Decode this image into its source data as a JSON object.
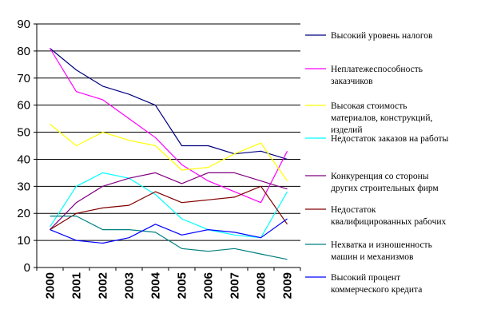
{
  "chart_data": {
    "type": "line",
    "x": [
      "2000",
      "2001",
      "2002",
      "2003",
      "2004",
      "2005",
      "2006",
      "2007",
      "2008",
      "2009"
    ],
    "ylim": [
      0,
      90
    ],
    "yticks": [
      "0",
      "10",
      "20",
      "30",
      "40",
      "50",
      "60",
      "70",
      "80",
      "90"
    ],
    "grid": "horizontal",
    "legend_position": "right",
    "series": [
      {
        "name_lines": [
          "Высокий уровень налогов"
        ],
        "color": "#000080",
        "values": [
          81,
          73,
          67,
          64,
          60,
          45,
          45,
          42,
          43,
          40
        ]
      },
      {
        "name_lines": [
          "Неплатежеспособность",
          "заказчиков"
        ],
        "color": "#ff00ff",
        "values": [
          81,
          65,
          62,
          55,
          48,
          38,
          32,
          28,
          24,
          43
        ]
      },
      {
        "name_lines": [
          "Высокая стоимость",
          "материалов, конструкций,",
          "изделий"
        ],
        "color": "#ffff00",
        "values": [
          53,
          45,
          50,
          47,
          45,
          36,
          37,
          42,
          46,
          32
        ]
      },
      {
        "name_lines": [
          "Недостаток заказов на работы"
        ],
        "color": "#00ffff",
        "values": [
          15,
          30,
          35,
          33,
          27,
          18,
          14,
          12,
          11,
          28
        ]
      },
      {
        "name_lines": [
          "Конкуренция со стороны",
          "других строительных фирм"
        ],
        "color": "#800080",
        "values": [
          14,
          24,
          30,
          33,
          35,
          31,
          35,
          35,
          32,
          29
        ]
      },
      {
        "name_lines": [
          "Недостаток",
          "квалифицированных рабочих"
        ],
        "color": "#800000",
        "values": [
          14,
          20,
          22,
          23,
          28,
          24,
          25,
          26,
          30,
          16
        ]
      },
      {
        "name_lines": [
          "Нехватка и изношенность",
          "машин и механизмов"
        ],
        "color": "#008080",
        "values": [
          19,
          19,
          14,
          14,
          13,
          7,
          6,
          7,
          5,
          3
        ]
      },
      {
        "name_lines": [
          "Высокий процент",
          "коммерческого кредита"
        ],
        "color": "#0000ff",
        "values": [
          14,
          10,
          9,
          11,
          16,
          12,
          14,
          13,
          11,
          18
        ]
      }
    ]
  }
}
